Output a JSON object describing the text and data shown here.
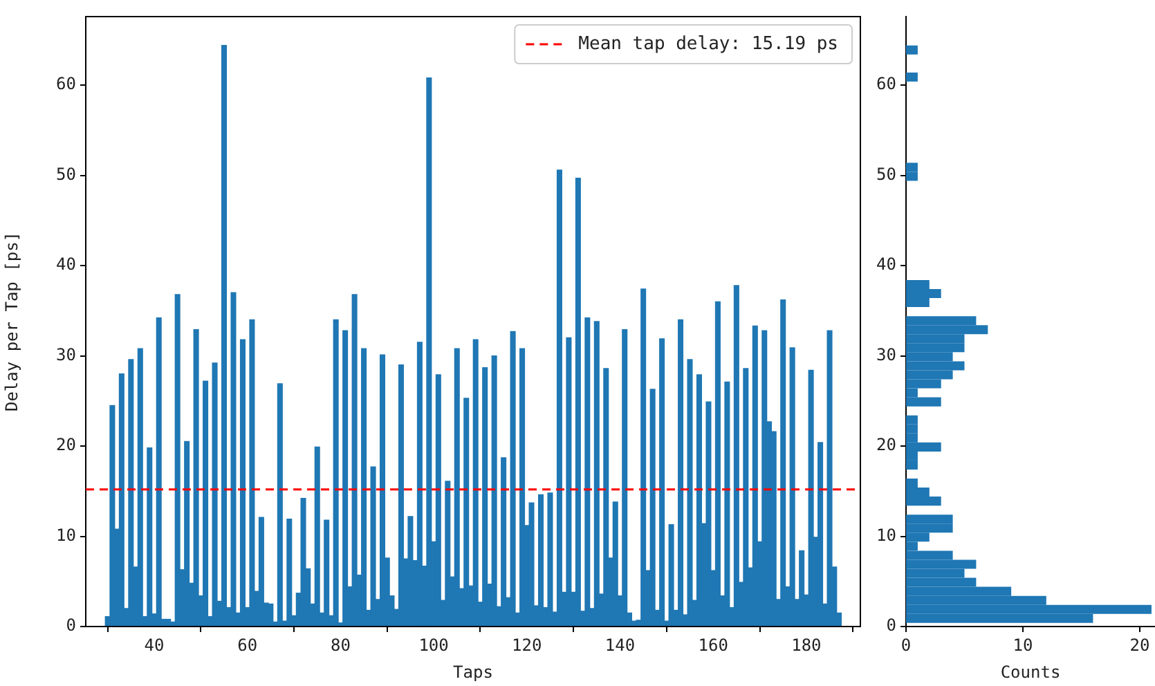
{
  "chart_data": [
    {
      "type": "bar",
      "xlabel": "Taps",
      "ylabel": "Delay per Tap [ps]",
      "color": "#1f77b4",
      "x": [
        30,
        31,
        32,
        33,
        34,
        35,
        36,
        37,
        38,
        39,
        40,
        41,
        42,
        43,
        44,
        45,
        46,
        47,
        48,
        49,
        50,
        51,
        52,
        53,
        54,
        55,
        56,
        57,
        58,
        59,
        60,
        61,
        62,
        63,
        64,
        65,
        66,
        67,
        68,
        69,
        70,
        71,
        72,
        73,
        74,
        75,
        76,
        77,
        78,
        79,
        80,
        81,
        82,
        83,
        84,
        85,
        86,
        87,
        88,
        89,
        90,
        91,
        92,
        93,
        94,
        95,
        96,
        97,
        98,
        99,
        100,
        101,
        102,
        103,
        104,
        105,
        106,
        107,
        108,
        109,
        110,
        111,
        112,
        113,
        114,
        115,
        116,
        117,
        118,
        119,
        120,
        121,
        122,
        123,
        124,
        125,
        126,
        127,
        128,
        129,
        130,
        131,
        132,
        133,
        134,
        135,
        136,
        137,
        138,
        139,
        140,
        141,
        142,
        143,
        144,
        145,
        146,
        147,
        148,
        149,
        150,
        151,
        152,
        153,
        154,
        155,
        156,
        157,
        158,
        159,
        160,
        161,
        162,
        163,
        164,
        165,
        166,
        167,
        168,
        169,
        170,
        171,
        172,
        173,
        174,
        175,
        176,
        177,
        178,
        179,
        180,
        181,
        182,
        183,
        184,
        185,
        186,
        187
      ],
      "values": [
        1.1,
        24.5,
        10.8,
        28.0,
        2.0,
        29.6,
        6.6,
        30.8,
        1.1,
        19.8,
        1.4,
        34.2,
        0.8,
        0.8,
        0.5,
        36.8,
        6.3,
        20.5,
        4.8,
        32.9,
        3.4,
        27.2,
        1.1,
        29.2,
        2.8,
        64.4,
        2.1,
        37.0,
        1.5,
        31.8,
        2.1,
        34.0,
        3.9,
        12.1,
        2.6,
        2.5,
        0.5,
        26.9,
        0.6,
        11.9,
        1.2,
        3.7,
        14.2,
        6.4,
        2.5,
        19.9,
        1.5,
        11.8,
        1.2,
        34.0,
        0.4,
        32.8,
        4.4,
        36.8,
        5.7,
        30.8,
        1.8,
        17.7,
        3.0,
        30.1,
        7.6,
        3.4,
        1.9,
        29.0,
        7.5,
        12.2,
        7.3,
        31.5,
        6.7,
        60.8,
        9.4,
        27.9,
        2.9,
        16.1,
        5.5,
        30.8,
        4.2,
        25.3,
        4.5,
        31.8,
        2.7,
        28.7,
        4.7,
        30.0,
        2.2,
        18.7,
        3.2,
        32.7,
        1.5,
        30.8,
        11.2,
        13.7,
        2.3,
        14.6,
        2.1,
        14.8,
        1.6,
        50.6,
        3.8,
        32.0,
        3.8,
        49.7,
        1.7,
        34.2,
        2.0,
        33.8,
        3.6,
        28.6,
        7.6,
        13.8,
        3.4,
        32.9,
        1.5,
        0.6,
        0.7,
        37.4,
        6.2,
        26.3,
        1.8,
        31.9,
        0.6,
        11.3,
        1.8,
        34.0,
        1.3,
        29.6,
        2.9,
        27.9,
        11.4,
        24.9,
        6.2,
        36.0,
        3.4,
        27.1,
        2.1,
        37.8,
        4.9,
        28.6,
        6.5,
        33.3,
        9.4,
        32.8,
        22.7,
        21.6,
        3.0,
        36.2,
        4.4,
        30.9,
        3.0,
        8.4,
        3.5,
        28.4,
        9.9,
        20.4,
        2.5,
        32.8,
        6.6,
        1.5
      ],
      "xlim": [
        25.3,
        191.6
      ],
      "xticks": [
        40,
        60,
        80,
        100,
        120,
        140,
        160,
        180
      ],
      "ylim": [
        0,
        67.6
      ],
      "yticks": [
        0,
        10,
        20,
        30,
        40,
        50,
        60
      ],
      "ref_lines": [
        {
          "axis": "y",
          "value": 15.19,
          "label": "Mean tap delay: 15.19 ps",
          "color": "#ff0000",
          "line_style": "dashed"
        }
      ],
      "legend": "top right"
    },
    {
      "type": "histogram",
      "orientation": "horizontal",
      "xlabel": "Counts",
      "color": "#1f77b4",
      "bins": [
        0.4,
        1.4,
        2.4,
        3.4,
        4.4,
        5.4,
        6.4,
        7.4,
        8.4,
        9.4,
        10.4,
        11.4,
        12.4,
        13.4,
        14.4,
        15.4,
        16.4,
        17.4,
        18.4,
        19.4,
        20.4,
        21.4,
        22.4,
        23.4,
        24.4,
        25.4,
        26.4,
        27.4,
        28.4,
        29.4,
        30.4,
        31.4,
        32.4,
        33.4,
        34.4,
        35.4,
        36.4,
        37.4,
        38.4,
        39.4,
        40.4,
        41.4,
        42.4,
        43.4,
        44.4,
        45.4,
        46.4,
        47.4,
        48.4,
        49.4,
        50.4,
        51.4,
        52.4,
        53.4,
        54.4,
        55.4,
        56.4,
        57.4,
        58.4,
        59.4,
        60.4,
        61.4,
        62.4,
        63.4,
        64.4
      ],
      "values": [
        16,
        21,
        12,
        9,
        6,
        5,
        6,
        4,
        1,
        2,
        4,
        4,
        0,
        3,
        2,
        1,
        0,
        1,
        1,
        3,
        1,
        1,
        1,
        0,
        3,
        1,
        3,
        4,
        5,
        4,
        5,
        5,
        7,
        6,
        0,
        2,
        3,
        2,
        0,
        0,
        0,
        0,
        0,
        0,
        0,
        0,
        0,
        0,
        0,
        1,
        1,
        0,
        0,
        0,
        0,
        0,
        0,
        0,
        0,
        0,
        1,
        0,
        0,
        1
      ],
      "xlim": [
        0,
        21.3
      ],
      "xticks": [
        0,
        10,
        20
      ],
      "ylim": [
        0,
        67.6
      ],
      "yticks": [
        0,
        10,
        20,
        30,
        40,
        50,
        60
      ]
    }
  ]
}
